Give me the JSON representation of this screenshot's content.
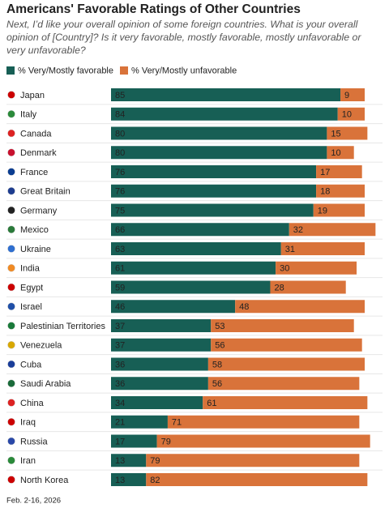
{
  "chart_data": {
    "type": "bar",
    "orientation": "horizontal",
    "stacked": true,
    "title": "Americans' Favorable Ratings of Other Countries",
    "subtitle": "Next, I’d like your overall opinion of some foreign countries. What is your overall opinion of [Country]? Is it very favorable, mostly favorable, mostly unfavorable or very unfavorable?",
    "categories": [
      "Japan",
      "Italy",
      "Canada",
      "Denmark",
      "France",
      "Great Britain",
      "Germany",
      "Mexico",
      "Ukraine",
      "India",
      "Egypt",
      "Israel",
      "Palestinian Territories",
      "Venezuela",
      "Cuba",
      "Saudi Arabia",
      "China",
      "Iraq",
      "Russia",
      "Iran",
      "North Korea"
    ],
    "series": [
      {
        "name": "% Very/Mostly favorable",
        "color": "#175f55",
        "values": [
          85,
          84,
          80,
          80,
          76,
          76,
          75,
          66,
          63,
          61,
          59,
          46,
          37,
          37,
          36,
          36,
          34,
          21,
          17,
          13,
          13
        ]
      },
      {
        "name": "% Very/Mostly unfavorable",
        "color": "#d9733a",
        "values": [
          9,
          10,
          15,
          10,
          17,
          18,
          19,
          32,
          31,
          30,
          28,
          48,
          53,
          56,
          58,
          56,
          61,
          71,
          79,
          79,
          82
        ]
      }
    ],
    "xlim": [
      0,
      100
    ],
    "note": "Feb. 2-16, 2026"
  }
}
